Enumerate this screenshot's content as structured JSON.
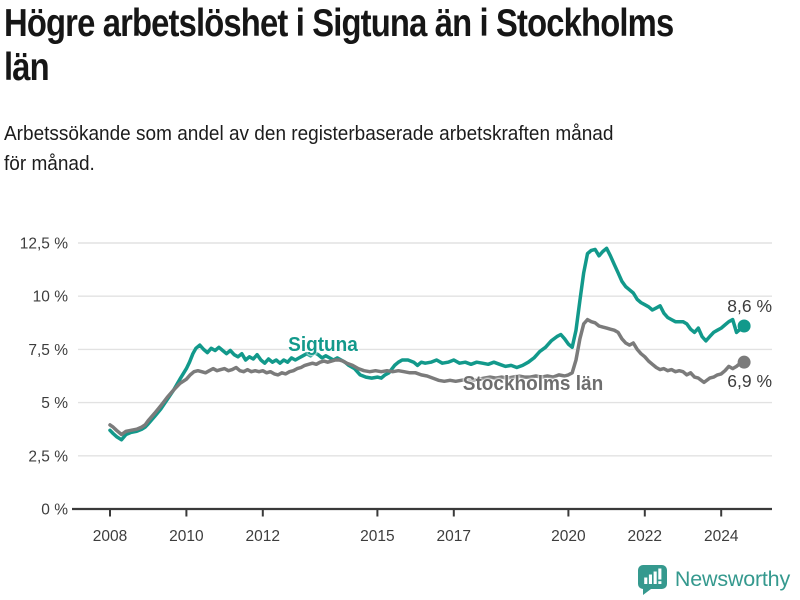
{
  "title": {
    "lines": [
      "Högre arbetslöshet i Sigtuna än i Stockholms",
      "län"
    ]
  },
  "subtitle": {
    "lines": [
      "Arbetssökande som andel av den registerbaserade arbetskraften månad",
      "för månad."
    ]
  },
  "logo": {
    "text": "Newsworthy",
    "color": "#35998e",
    "icon": "bar-chart-speech-bubble-icon"
  },
  "chart_data": {
    "type": "line",
    "title": "Högre arbetslöshet i Sigtuna än i Stockholms län",
    "xlabel": "",
    "ylabel": "",
    "unit": "%",
    "grid": true,
    "x_axis": {
      "range": [
        2007.0,
        2025.3
      ],
      "ticks": [
        2008,
        2010,
        2012,
        2015,
        2017,
        2020,
        2022,
        2024
      ],
      "tick_labels": [
        "2008",
        "2010",
        "2012",
        "2015",
        "2017",
        "2020",
        "2022",
        "2024"
      ]
    },
    "y_axis": {
      "range": [
        0,
        13.5
      ],
      "ticks": [
        0,
        2.5,
        5,
        7.5,
        10,
        12.5
      ],
      "tick_labels": [
        "0 %",
        "2,5 %",
        "5 %",
        "7,5 %",
        "10 %",
        "12,5 %"
      ]
    },
    "series": [
      {
        "name": "Sigtuna",
        "color": "#12998b",
        "end_label": "8,6 %",
        "end_value": 8.6,
        "points": [
          [
            2008.0,
            3.7
          ],
          [
            2008.08,
            3.55
          ],
          [
            2008.17,
            3.4
          ],
          [
            2008.3,
            3.25
          ],
          [
            2008.42,
            3.5
          ],
          [
            2008.55,
            3.6
          ],
          [
            2008.7,
            3.65
          ],
          [
            2008.83,
            3.75
          ],
          [
            2008.92,
            3.85
          ],
          [
            2009.0,
            4.0
          ],
          [
            2009.17,
            4.35
          ],
          [
            2009.33,
            4.7
          ],
          [
            2009.5,
            5.15
          ],
          [
            2009.67,
            5.6
          ],
          [
            2009.83,
            6.1
          ],
          [
            2010.0,
            6.6
          ],
          [
            2010.08,
            6.9
          ],
          [
            2010.17,
            7.3
          ],
          [
            2010.25,
            7.55
          ],
          [
            2010.35,
            7.7
          ],
          [
            2010.45,
            7.5
          ],
          [
            2010.55,
            7.35
          ],
          [
            2010.65,
            7.55
          ],
          [
            2010.75,
            7.45
          ],
          [
            2010.85,
            7.6
          ],
          [
            2010.95,
            7.45
          ],
          [
            2011.05,
            7.3
          ],
          [
            2011.15,
            7.45
          ],
          [
            2011.25,
            7.25
          ],
          [
            2011.35,
            7.15
          ],
          [
            2011.45,
            7.3
          ],
          [
            2011.55,
            7.0
          ],
          [
            2011.65,
            7.15
          ],
          [
            2011.75,
            7.05
          ],
          [
            2011.85,
            7.25
          ],
          [
            2011.95,
            7.0
          ],
          [
            2012.05,
            6.85
          ],
          [
            2012.15,
            7.05
          ],
          [
            2012.25,
            6.9
          ],
          [
            2012.35,
            7.0
          ],
          [
            2012.45,
            6.85
          ],
          [
            2012.55,
            7.0
          ],
          [
            2012.65,
            6.9
          ],
          [
            2012.75,
            7.1
          ],
          [
            2012.85,
            7.0
          ],
          [
            2012.95,
            7.1
          ],
          [
            2013.05,
            7.2
          ],
          [
            2013.15,
            7.3
          ],
          [
            2013.25,
            7.2
          ],
          [
            2013.35,
            7.35
          ],
          [
            2013.45,
            7.25
          ],
          [
            2013.55,
            7.1
          ],
          [
            2013.65,
            7.2
          ],
          [
            2013.75,
            7.1
          ],
          [
            2013.85,
            7.0
          ],
          [
            2013.95,
            7.1
          ],
          [
            2014.05,
            7.0
          ],
          [
            2014.15,
            6.9
          ],
          [
            2014.25,
            6.75
          ],
          [
            2014.4,
            6.6
          ],
          [
            2014.55,
            6.3
          ],
          [
            2014.7,
            6.2
          ],
          [
            2014.85,
            6.15
          ],
          [
            2015.0,
            6.2
          ],
          [
            2015.1,
            6.15
          ],
          [
            2015.2,
            6.3
          ],
          [
            2015.3,
            6.4
          ],
          [
            2015.45,
            6.75
          ],
          [
            2015.55,
            6.9
          ],
          [
            2015.65,
            7.0
          ],
          [
            2015.8,
            7.0
          ],
          [
            2015.95,
            6.9
          ],
          [
            2016.05,
            6.75
          ],
          [
            2016.15,
            6.9
          ],
          [
            2016.25,
            6.85
          ],
          [
            2016.4,
            6.9
          ],
          [
            2016.55,
            7.0
          ],
          [
            2016.7,
            6.85
          ],
          [
            2016.85,
            6.9
          ],
          [
            2017.0,
            7.0
          ],
          [
            2017.15,
            6.85
          ],
          [
            2017.3,
            6.9
          ],
          [
            2017.45,
            6.8
          ],
          [
            2017.6,
            6.9
          ],
          [
            2017.75,
            6.85
          ],
          [
            2017.9,
            6.8
          ],
          [
            2018.05,
            6.9
          ],
          [
            2018.2,
            6.8
          ],
          [
            2018.35,
            6.7
          ],
          [
            2018.5,
            6.75
          ],
          [
            2018.65,
            6.65
          ],
          [
            2018.8,
            6.75
          ],
          [
            2018.95,
            6.9
          ],
          [
            2019.1,
            7.1
          ],
          [
            2019.25,
            7.4
          ],
          [
            2019.4,
            7.6
          ],
          [
            2019.55,
            7.9
          ],
          [
            2019.7,
            8.1
          ],
          [
            2019.8,
            8.2
          ],
          [
            2019.9,
            8.0
          ],
          [
            2020.0,
            7.75
          ],
          [
            2020.1,
            7.6
          ],
          [
            2020.2,
            8.4
          ],
          [
            2020.3,
            9.8
          ],
          [
            2020.4,
            11.1
          ],
          [
            2020.5,
            12.0
          ],
          [
            2020.6,
            12.15
          ],
          [
            2020.7,
            12.2
          ],
          [
            2020.8,
            11.9
          ],
          [
            2020.9,
            12.1
          ],
          [
            2021.0,
            12.25
          ],
          [
            2021.1,
            11.9
          ],
          [
            2021.2,
            11.5
          ],
          [
            2021.3,
            11.1
          ],
          [
            2021.4,
            10.7
          ],
          [
            2021.5,
            10.45
          ],
          [
            2021.6,
            10.3
          ],
          [
            2021.7,
            10.15
          ],
          [
            2021.8,
            9.85
          ],
          [
            2021.9,
            9.7
          ],
          [
            2022.0,
            9.6
          ],
          [
            2022.1,
            9.5
          ],
          [
            2022.2,
            9.35
          ],
          [
            2022.3,
            9.45
          ],
          [
            2022.4,
            9.55
          ],
          [
            2022.5,
            9.2
          ],
          [
            2022.6,
            9.0
          ],
          [
            2022.7,
            8.9
          ],
          [
            2022.8,
            8.8
          ],
          [
            2022.9,
            8.8
          ],
          [
            2023.0,
            8.8
          ],
          [
            2023.1,
            8.7
          ],
          [
            2023.2,
            8.45
          ],
          [
            2023.3,
            8.3
          ],
          [
            2023.4,
            8.5
          ],
          [
            2023.5,
            8.1
          ],
          [
            2023.6,
            7.9
          ],
          [
            2023.7,
            8.1
          ],
          [
            2023.8,
            8.3
          ],
          [
            2023.9,
            8.4
          ],
          [
            2024.0,
            8.5
          ],
          [
            2024.1,
            8.65
          ],
          [
            2024.2,
            8.8
          ],
          [
            2024.3,
            8.9
          ],
          [
            2024.4,
            8.3
          ],
          [
            2024.5,
            8.45
          ],
          [
            2024.6,
            8.6
          ]
        ]
      },
      {
        "name": "Stockholms län",
        "color": "#7b7b7b",
        "end_label": "6,9 %",
        "end_value": 6.9,
        "points": [
          [
            2008.0,
            3.95
          ],
          [
            2008.08,
            3.85
          ],
          [
            2008.17,
            3.7
          ],
          [
            2008.3,
            3.5
          ],
          [
            2008.42,
            3.65
          ],
          [
            2008.55,
            3.7
          ],
          [
            2008.7,
            3.75
          ],
          [
            2008.83,
            3.85
          ],
          [
            2008.92,
            3.95
          ],
          [
            2009.0,
            4.15
          ],
          [
            2009.17,
            4.5
          ],
          [
            2009.33,
            4.85
          ],
          [
            2009.5,
            5.25
          ],
          [
            2009.67,
            5.6
          ],
          [
            2009.83,
            5.9
          ],
          [
            2010.0,
            6.1
          ],
          [
            2010.1,
            6.3
          ],
          [
            2010.2,
            6.45
          ],
          [
            2010.3,
            6.5
          ],
          [
            2010.4,
            6.45
          ],
          [
            2010.5,
            6.4
          ],
          [
            2010.6,
            6.5
          ],
          [
            2010.7,
            6.6
          ],
          [
            2010.8,
            6.5
          ],
          [
            2010.9,
            6.55
          ],
          [
            2011.0,
            6.6
          ],
          [
            2011.1,
            6.5
          ],
          [
            2011.2,
            6.55
          ],
          [
            2011.3,
            6.65
          ],
          [
            2011.4,
            6.5
          ],
          [
            2011.5,
            6.45
          ],
          [
            2011.6,
            6.55
          ],
          [
            2011.7,
            6.45
          ],
          [
            2011.8,
            6.5
          ],
          [
            2011.9,
            6.45
          ],
          [
            2012.0,
            6.5
          ],
          [
            2012.1,
            6.4
          ],
          [
            2012.2,
            6.45
          ],
          [
            2012.3,
            6.35
          ],
          [
            2012.4,
            6.3
          ],
          [
            2012.5,
            6.4
          ],
          [
            2012.6,
            6.35
          ],
          [
            2012.7,
            6.45
          ],
          [
            2012.8,
            6.5
          ],
          [
            2012.9,
            6.6
          ],
          [
            2013.0,
            6.65
          ],
          [
            2013.1,
            6.75
          ],
          [
            2013.2,
            6.8
          ],
          [
            2013.3,
            6.85
          ],
          [
            2013.4,
            6.8
          ],
          [
            2013.5,
            6.9
          ],
          [
            2013.6,
            6.95
          ],
          [
            2013.7,
            6.9
          ],
          [
            2013.8,
            6.95
          ],
          [
            2013.9,
            7.0
          ],
          [
            2014.0,
            7.0
          ],
          [
            2014.1,
            6.95
          ],
          [
            2014.2,
            6.85
          ],
          [
            2014.35,
            6.75
          ],
          [
            2014.5,
            6.6
          ],
          [
            2014.65,
            6.5
          ],
          [
            2014.8,
            6.45
          ],
          [
            2014.95,
            6.5
          ],
          [
            2015.1,
            6.45
          ],
          [
            2015.25,
            6.5
          ],
          [
            2015.4,
            6.45
          ],
          [
            2015.55,
            6.5
          ],
          [
            2015.7,
            6.45
          ],
          [
            2015.85,
            6.4
          ],
          [
            2016.0,
            6.4
          ],
          [
            2016.15,
            6.3
          ],
          [
            2016.3,
            6.25
          ],
          [
            2016.45,
            6.15
          ],
          [
            2016.6,
            6.05
          ],
          [
            2016.75,
            6.0
          ],
          [
            2016.9,
            6.05
          ],
          [
            2017.05,
            6.0
          ],
          [
            2017.2,
            6.05
          ],
          [
            2017.35,
            6.1
          ],
          [
            2017.5,
            6.05
          ],
          [
            2017.65,
            6.1
          ],
          [
            2017.8,
            6.15
          ],
          [
            2017.95,
            6.2
          ],
          [
            2018.1,
            6.15
          ],
          [
            2018.25,
            6.2
          ],
          [
            2018.4,
            6.15
          ],
          [
            2018.55,
            6.2
          ],
          [
            2018.7,
            6.25
          ],
          [
            2018.85,
            6.2
          ],
          [
            2019.0,
            6.2
          ],
          [
            2019.15,
            6.25
          ],
          [
            2019.3,
            6.2
          ],
          [
            2019.45,
            6.25
          ],
          [
            2019.6,
            6.2
          ],
          [
            2019.75,
            6.3
          ],
          [
            2019.9,
            6.25
          ],
          [
            2020.0,
            6.3
          ],
          [
            2020.1,
            6.4
          ],
          [
            2020.2,
            7.0
          ],
          [
            2020.3,
            8.0
          ],
          [
            2020.4,
            8.7
          ],
          [
            2020.5,
            8.9
          ],
          [
            2020.6,
            8.8
          ],
          [
            2020.7,
            8.75
          ],
          [
            2020.8,
            8.6
          ],
          [
            2020.9,
            8.55
          ],
          [
            2021.0,
            8.5
          ],
          [
            2021.1,
            8.45
          ],
          [
            2021.2,
            8.4
          ],
          [
            2021.3,
            8.3
          ],
          [
            2021.4,
            8.0
          ],
          [
            2021.5,
            7.8
          ],
          [
            2021.6,
            7.7
          ],
          [
            2021.7,
            7.8
          ],
          [
            2021.8,
            7.5
          ],
          [
            2021.9,
            7.3
          ],
          [
            2022.0,
            7.15
          ],
          [
            2022.1,
            6.95
          ],
          [
            2022.2,
            6.8
          ],
          [
            2022.3,
            6.65
          ],
          [
            2022.4,
            6.55
          ],
          [
            2022.5,
            6.6
          ],
          [
            2022.6,
            6.5
          ],
          [
            2022.7,
            6.55
          ],
          [
            2022.8,
            6.45
          ],
          [
            2022.9,
            6.5
          ],
          [
            2023.0,
            6.45
          ],
          [
            2023.1,
            6.3
          ],
          [
            2023.2,
            6.4
          ],
          [
            2023.3,
            6.2
          ],
          [
            2023.4,
            6.15
          ],
          [
            2023.55,
            5.95
          ],
          [
            2023.7,
            6.15
          ],
          [
            2023.8,
            6.2
          ],
          [
            2023.9,
            6.3
          ],
          [
            2024.0,
            6.35
          ],
          [
            2024.1,
            6.5
          ],
          [
            2024.2,
            6.7
          ],
          [
            2024.3,
            6.6
          ],
          [
            2024.4,
            6.7
          ],
          [
            2024.5,
            6.85
          ],
          [
            2024.6,
            6.9
          ]
        ]
      }
    ],
    "legend_position": "inline-labels"
  }
}
